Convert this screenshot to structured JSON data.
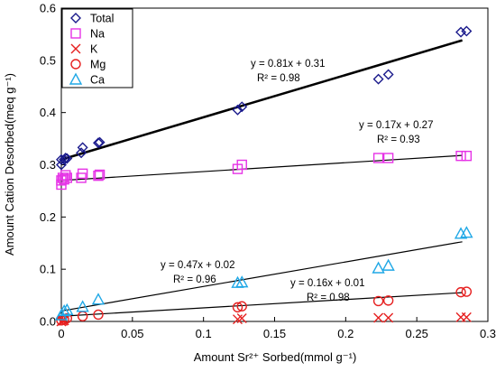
{
  "chart_data": {
    "type": "scatter",
    "xlabel": "Amount Sr²⁺ Sorbed(mmol g⁻¹)",
    "ylabel": "Amount Cation Desorbed(meq g⁻¹)",
    "xlim": [
      0,
      0.3
    ],
    "ylim": [
      0,
      0.6
    ],
    "x_ticks": [
      0,
      0.05,
      0.1,
      0.15,
      0.2,
      0.25,
      0.3
    ],
    "y_ticks": [
      0,
      0.1,
      0.2,
      0.3,
      0.4,
      0.5,
      0.6
    ],
    "x_tick_labels": [
      "0",
      "0.05",
      "0.1",
      "0.15",
      "0.2",
      "0.25",
      "0.3"
    ],
    "y_tick_labels": [
      "0.0",
      "0.1",
      "0.2",
      "0.3",
      "0.4",
      "0.5",
      "0.6"
    ],
    "grid": false,
    "legend_position": "top-left",
    "series": [
      {
        "name": "Total",
        "marker": "diamond",
        "color": "#1a1a8c",
        "points": [
          [
            0.0,
            0.3
          ],
          [
            0.0,
            0.31
          ],
          [
            0.002,
            0.31
          ],
          [
            0.003,
            0.313
          ],
          [
            0.004,
            0.312
          ],
          [
            0.014,
            0.323
          ],
          [
            0.015,
            0.333
          ],
          [
            0.026,
            0.342
          ],
          [
            0.027,
            0.343
          ],
          [
            0.124,
            0.405
          ],
          [
            0.127,
            0.411
          ],
          [
            0.223,
            0.464
          ],
          [
            0.23,
            0.473
          ],
          [
            0.281,
            0.554
          ],
          [
            0.285,
            0.556
          ]
        ],
        "fit": {
          "slope": 0.81,
          "intercept": 0.31,
          "label": "y = 0.81x + 0.31",
          "r2_label": "R² = 0.98",
          "line_weight": "heavy"
        }
      },
      {
        "name": "Na",
        "marker": "square",
        "color": "#e633e6",
        "points": [
          [
            0.0,
            0.262
          ],
          [
            0.0,
            0.27
          ],
          [
            0.001,
            0.275
          ],
          [
            0.002,
            0.272
          ],
          [
            0.003,
            0.28
          ],
          [
            0.004,
            0.275
          ],
          [
            0.014,
            0.275
          ],
          [
            0.015,
            0.283
          ],
          [
            0.026,
            0.279
          ],
          [
            0.027,
            0.281
          ],
          [
            0.124,
            0.292
          ],
          [
            0.127,
            0.3
          ],
          [
            0.223,
            0.313
          ],
          [
            0.23,
            0.313
          ],
          [
            0.281,
            0.317
          ],
          [
            0.285,
            0.317
          ]
        ],
        "fit": {
          "slope": 0.17,
          "intercept": 0.27,
          "label": "y = 0.17x + 0.27",
          "r2_label": "R² = 0.93",
          "line_weight": "thin"
        }
      },
      {
        "name": "K",
        "marker": "x",
        "color": "#e62020",
        "points": [
          [
            0.0,
            0.0
          ],
          [
            0.001,
            0.001
          ],
          [
            0.002,
            0.002
          ],
          [
            0.124,
            0.004
          ],
          [
            0.127,
            0.006
          ],
          [
            0.223,
            0.007
          ],
          [
            0.23,
            0.007
          ],
          [
            0.281,
            0.008
          ],
          [
            0.285,
            0.008
          ]
        ]
      },
      {
        "name": "Mg",
        "marker": "circle",
        "color": "#e62020",
        "points": [
          [
            0.0,
            0.002
          ],
          [
            0.002,
            0.004
          ],
          [
            0.004,
            0.006
          ],
          [
            0.015,
            0.01
          ],
          [
            0.026,
            0.013
          ],
          [
            0.124,
            0.027
          ],
          [
            0.127,
            0.029
          ],
          [
            0.223,
            0.039
          ],
          [
            0.23,
            0.04
          ],
          [
            0.281,
            0.056
          ],
          [
            0.285,
            0.057
          ]
        ],
        "fit": {
          "slope": 0.16,
          "intercept": 0.01,
          "label": "y = 0.16x + 0.01",
          "r2_label": "R² = 0.98",
          "line_weight": "thin"
        }
      },
      {
        "name": "Ca",
        "marker": "triangle",
        "color": "#20a8e6",
        "points": [
          [
            0.0,
            0.012
          ],
          [
            0.002,
            0.02
          ],
          [
            0.004,
            0.022
          ],
          [
            0.015,
            0.028
          ],
          [
            0.026,
            0.042
          ],
          [
            0.124,
            0.074
          ],
          [
            0.127,
            0.075
          ],
          [
            0.223,
            0.102
          ],
          [
            0.23,
            0.107
          ],
          [
            0.281,
            0.168
          ],
          [
            0.285,
            0.17
          ]
        ],
        "fit": {
          "slope": 0.47,
          "intercept": 0.02,
          "label": "y = 0.47x + 0.02",
          "r2_label": "R² = 0.96",
          "line_weight": "thin"
        }
      }
    ]
  }
}
